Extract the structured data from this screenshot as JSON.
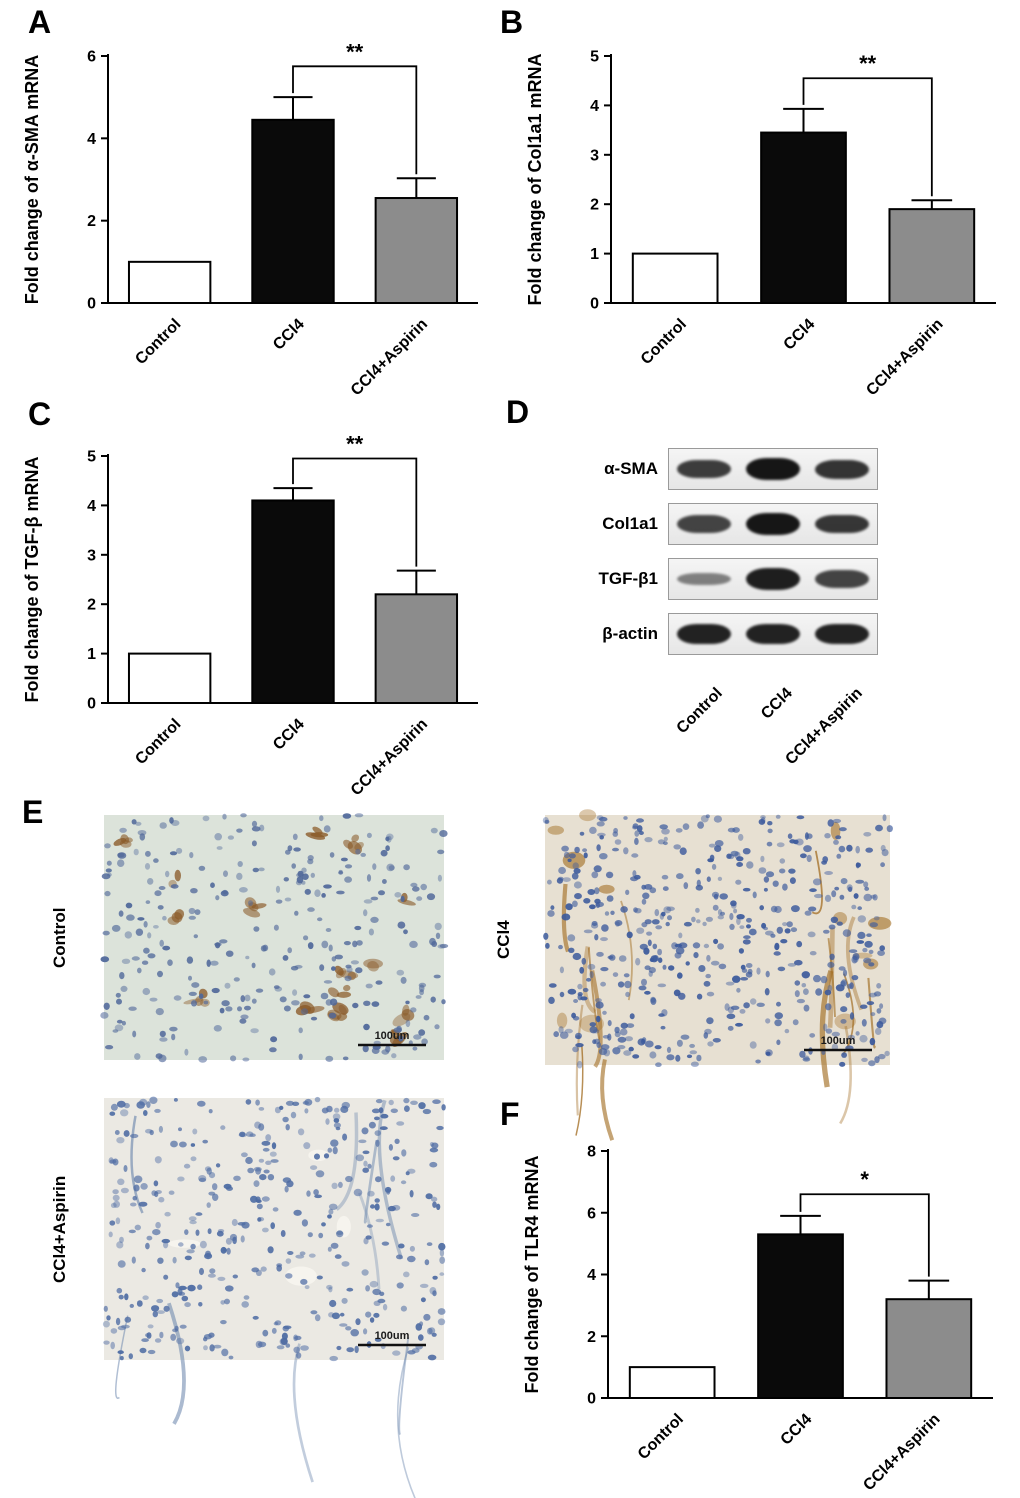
{
  "panel_letters": {
    "a": "A",
    "b": "B",
    "c": "C",
    "d": "D",
    "e": "E",
    "f": "F"
  },
  "chart_data": [
    {
      "id": "A",
      "type": "bar",
      "title": "",
      "ylabel": "Fold change of α-SMA mRNA",
      "categories": [
        "Control",
        "CCl4",
        "CCl4+Aspirin"
      ],
      "values": [
        1.0,
        4.45,
        2.55
      ],
      "errors": [
        0,
        0.55,
        0.48
      ],
      "ylim": [
        0,
        6
      ],
      "yticks": [
        0,
        2,
        4,
        6
      ],
      "bar_colors": [
        "#ffffff",
        "#0a0a0a",
        "#8c8c8c"
      ],
      "grid": false,
      "significance": {
        "label": "**",
        "from": 1,
        "to": 2,
        "height": 5.75
      }
    },
    {
      "id": "B",
      "type": "bar",
      "title": "",
      "ylabel": "Fold change of Col1a1 mRNA",
      "categories": [
        "Control",
        "CCl4",
        "CCl4+Aspirin"
      ],
      "values": [
        1.0,
        3.45,
        1.9
      ],
      "errors": [
        0,
        0.48,
        0.18
      ],
      "ylim": [
        0,
        5
      ],
      "yticks": [
        0,
        1,
        2,
        3,
        4,
        5
      ],
      "bar_colors": [
        "#ffffff",
        "#0a0a0a",
        "#8c8c8c"
      ],
      "grid": false,
      "significance": {
        "label": "**",
        "from": 1,
        "to": 2,
        "height": 4.55
      }
    },
    {
      "id": "C",
      "type": "bar",
      "title": "",
      "ylabel": "Fold change of TGF-β mRNA",
      "categories": [
        "Control",
        "CCl4",
        "CCl4+Aspirin"
      ],
      "values": [
        1.0,
        4.1,
        2.2
      ],
      "errors": [
        0,
        0.25,
        0.48
      ],
      "ylim": [
        0,
        5
      ],
      "yticks": [
        0,
        1,
        2,
        3,
        4,
        5
      ],
      "bar_colors": [
        "#ffffff",
        "#0a0a0a",
        "#8c8c8c"
      ],
      "grid": false,
      "significance": {
        "label": "**",
        "from": 1,
        "to": 2,
        "height": 4.95
      }
    },
    {
      "id": "F",
      "type": "bar",
      "title": "",
      "ylabel": "Fold change of TLR4 mRNA",
      "categories": [
        "Control",
        "CCl4",
        "CCl4+Aspirin"
      ],
      "values": [
        1.0,
        5.3,
        3.2
      ],
      "errors": [
        0,
        0.6,
        0.6
      ],
      "ylim": [
        0,
        8
      ],
      "yticks": [
        0,
        2,
        4,
        6,
        8
      ],
      "bar_colors": [
        "#ffffff",
        "#0a0a0a",
        "#8c8c8c"
      ],
      "grid": false,
      "significance": {
        "label": "*",
        "from": 1,
        "to": 2,
        "height": 6.6
      }
    }
  ],
  "western_blot": {
    "columns": [
      "Control",
      "CCl4",
      "CCl4+Aspirin"
    ],
    "rows": [
      {
        "label": "α-SMA",
        "intensities": [
          0.75,
          1.0,
          0.8
        ]
      },
      {
        "label": "Col1a1",
        "intensities": [
          0.7,
          1.0,
          0.78
        ]
      },
      {
        "label": "TGF-β1",
        "intensities": [
          0.3,
          0.95,
          0.7
        ]
      },
      {
        "label": "β-actin",
        "intensities": [
          0.92,
          0.92,
          0.92
        ]
      }
    ]
  },
  "histology": {
    "scale_label": "100um",
    "images": [
      {
        "id": "control",
        "label": "Control",
        "bg": "#dce3da",
        "nucleus_color": "#50689a",
        "nuclei": 300,
        "feature": "brown-spots",
        "feature_color": "#8a5a28",
        "seed": 7
      },
      {
        "id": "ccl4",
        "label": "CCl4",
        "bg": "#e7e0d2",
        "nucleus_color": "#3c5a9c",
        "nuclei": 520,
        "feature": "brown-septa",
        "feature_color": "#a06a1e",
        "seed": 11
      },
      {
        "id": "ccl4-aspirin",
        "label": "CCl4+Aspirin",
        "bg": "#ebe9e3",
        "nucleus_color": "#4d6ba3",
        "nuclei": 430,
        "feature": "blue-septa",
        "feature_color": "#6b86ad",
        "seed": 23
      }
    ]
  }
}
